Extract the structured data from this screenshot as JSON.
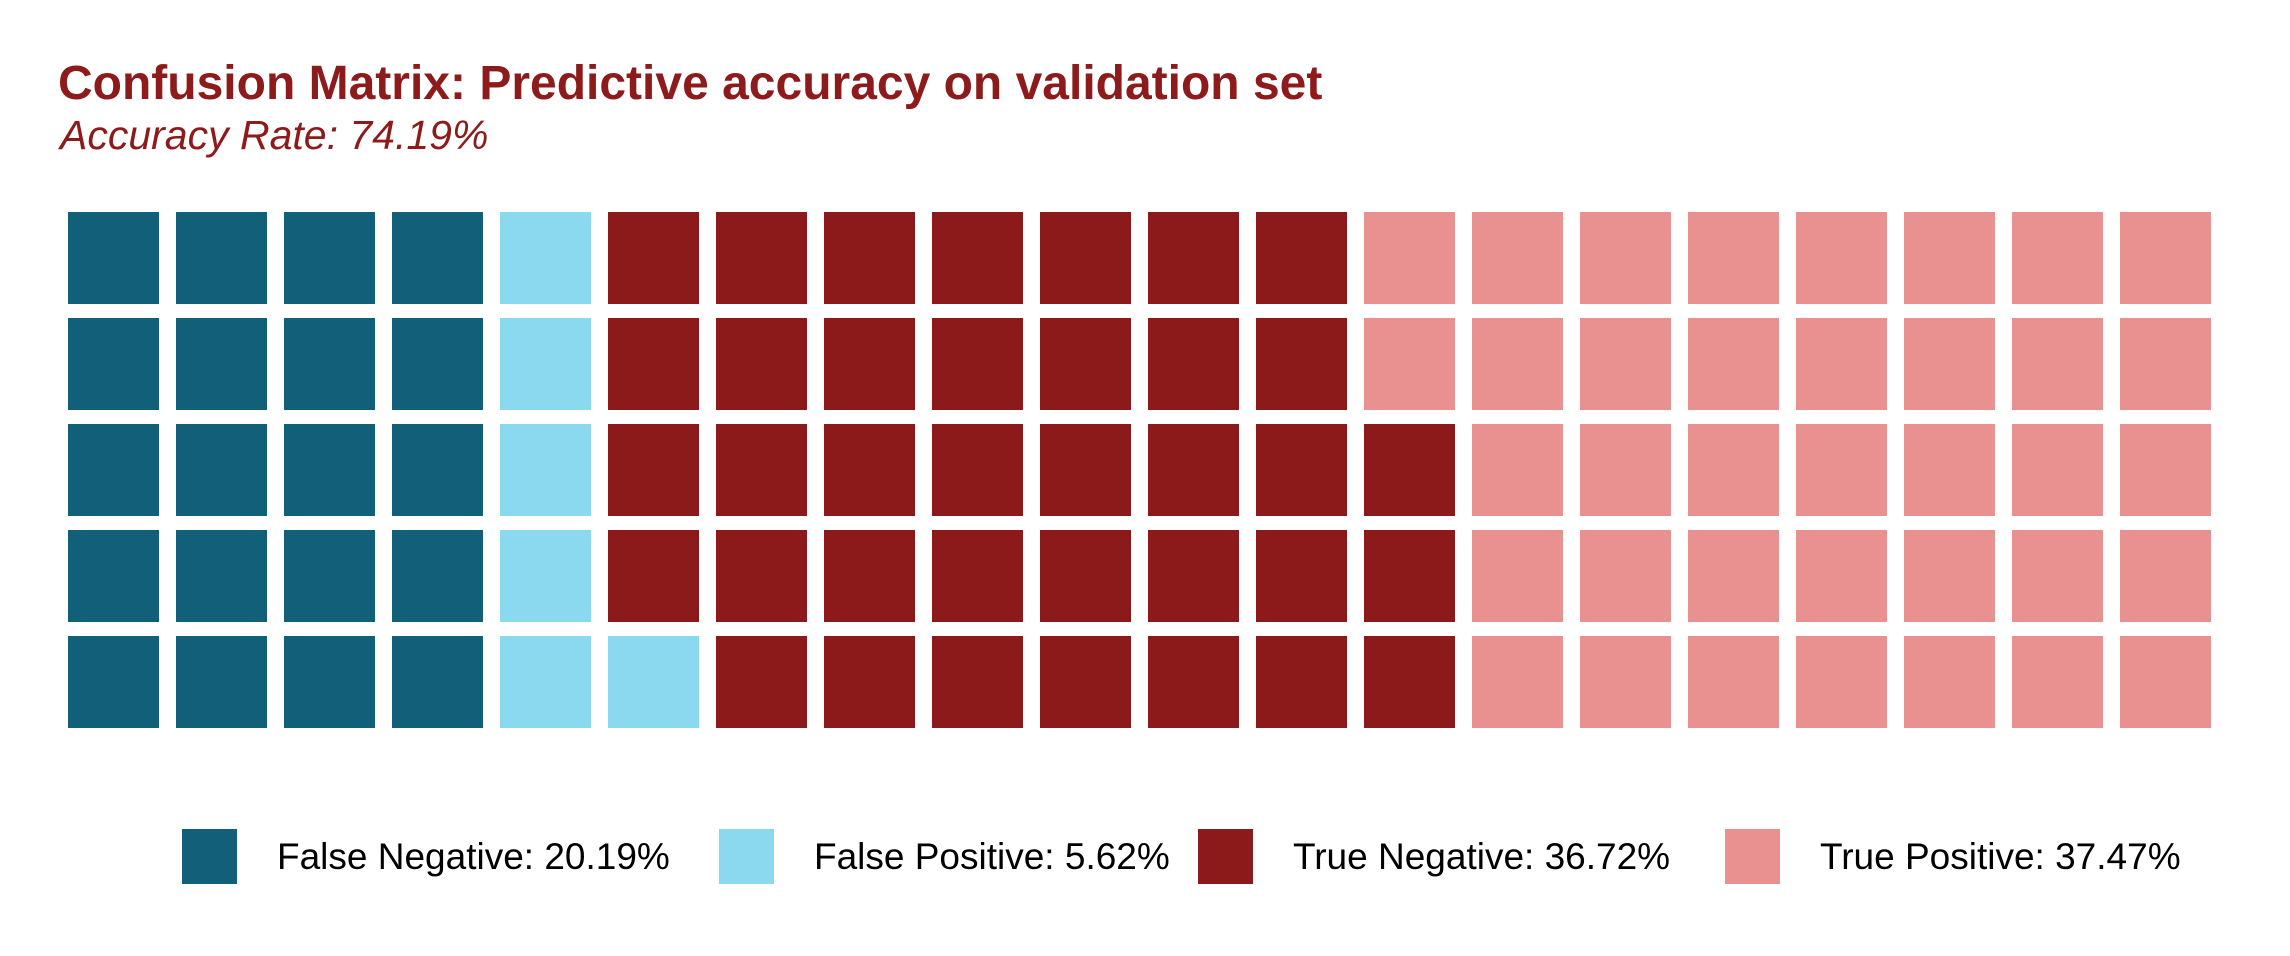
{
  "header": {
    "title": "Confusion Matrix: Predictive accuracy on validation set",
    "subtitle": "Accuracy Rate: 74.19%"
  },
  "colors": {
    "false_negative": "#115F78",
    "false_positive": "#8BD9EE",
    "true_negative": "#8C1A1A",
    "true_positive": "#E99191",
    "title_text": "#8E1B1B",
    "legend_text": "#000000",
    "background": "#FFFFFF"
  },
  "legend": {
    "items": [
      {
        "key": "FN",
        "label": "False Negative: 20.19%",
        "color": "#115F78"
      },
      {
        "key": "FP",
        "label": "False Positive: 5.62%",
        "color": "#8BD9EE"
      },
      {
        "key": "TN",
        "label": "True Negative: 36.72%",
        "color": "#8C1A1A"
      },
      {
        "key": "TP",
        "label": "True Positive: 37.47%",
        "color": "#E99191"
      }
    ]
  },
  "chart_data": {
    "type": "waffle",
    "title": "Confusion Matrix: Predictive accuracy on validation set",
    "subtitle": "Accuracy Rate: 74.19%",
    "accuracy_rate_pct": 74.19,
    "legend_position": "bottom",
    "grid": {
      "rows": 5,
      "cols": 20,
      "cell_value_pct": 1,
      "fill_order": "column-major-bottom-up"
    },
    "categories": [
      {
        "key": "FN",
        "label": "False Negative",
        "value_pct": 20.19,
        "cells": 20,
        "color": "#115F78"
      },
      {
        "key": "FP",
        "label": "False Positive",
        "value_pct": 5.62,
        "cells": 6,
        "color": "#8BD9EE"
      },
      {
        "key": "TN",
        "label": "True Negative",
        "value_pct": 36.72,
        "cells": 37,
        "color": "#8C1A1A"
      },
      {
        "key": "TP",
        "label": "True Positive",
        "value_pct": 37.47,
        "cells": 37,
        "color": "#E99191"
      }
    ],
    "cells_by_row": [
      [
        "FN",
        "FN",
        "FN",
        "FN",
        "FP",
        "TN",
        "TN",
        "TN",
        "TN",
        "TN",
        "TN",
        "TN",
        "TP",
        "TP",
        "TP",
        "TP",
        "TP",
        "TP",
        "TP",
        "TP"
      ],
      [
        "FN",
        "FN",
        "FN",
        "FN",
        "FP",
        "TN",
        "TN",
        "TN",
        "TN",
        "TN",
        "TN",
        "TN",
        "TP",
        "TP",
        "TP",
        "TP",
        "TP",
        "TP",
        "TP",
        "TP"
      ],
      [
        "FN",
        "FN",
        "FN",
        "FN",
        "FP",
        "TN",
        "TN",
        "TN",
        "TN",
        "TN",
        "TN",
        "TN",
        "TN",
        "TP",
        "TP",
        "TP",
        "TP",
        "TP",
        "TP",
        "TP"
      ],
      [
        "FN",
        "FN",
        "FN",
        "FN",
        "FP",
        "TN",
        "TN",
        "TN",
        "TN",
        "TN",
        "TN",
        "TN",
        "TN",
        "TP",
        "TP",
        "TP",
        "TP",
        "TP",
        "TP",
        "TP"
      ],
      [
        "FN",
        "FN",
        "FN",
        "FN",
        "FP",
        "FP",
        "TN",
        "TN",
        "TN",
        "TN",
        "TN",
        "TN",
        "TN",
        "TP",
        "TP",
        "TP",
        "TP",
        "TP",
        "TP",
        "TP"
      ]
    ]
  }
}
